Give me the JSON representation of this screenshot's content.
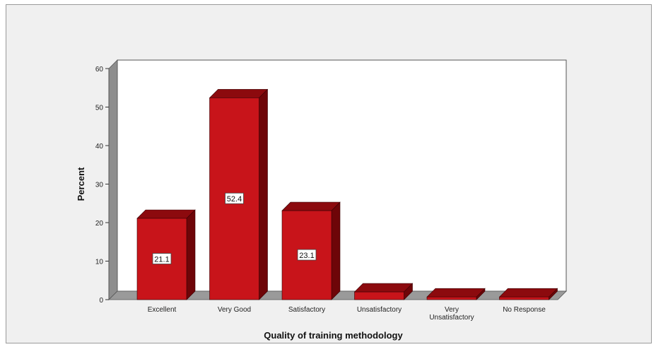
{
  "chart_data": {
    "type": "bar",
    "title": "",
    "xlabel": "Quality of training methodology",
    "ylabel": "Percent",
    "categories": [
      "Excellent",
      "Very Good",
      "Satisfactory",
      "Unsatisfactory",
      "Very Unsatisfactory",
      "No Response"
    ],
    "category_label_lines": [
      [
        "Excellent"
      ],
      [
        "Very Good"
      ],
      [
        "Satisfactory"
      ],
      [
        "Unsatisfactory"
      ],
      [
        "Very",
        "Unsatisfactory"
      ],
      [
        "No Response"
      ]
    ],
    "values": [
      21.1,
      52.4,
      23.1,
      2.0,
      0.7,
      0.7
    ],
    "data_labels": [
      "21.1",
      "52.4",
      "23.1",
      "",
      "",
      ""
    ],
    "ylim": [
      0,
      60
    ],
    "yticks": [
      0,
      10,
      20,
      30,
      40,
      50,
      60
    ],
    "grid": false,
    "legend": "none",
    "style": "3d",
    "colors": {
      "bar_front": "#c8141a",
      "bar_side": "#6e0508",
      "bar_top": "#8c0a0e",
      "plot_back": "#ffffff",
      "plot_floor": "#9a9a9a",
      "plot_wall": "#8e8e8e",
      "background": "#f0f0f0"
    }
  }
}
